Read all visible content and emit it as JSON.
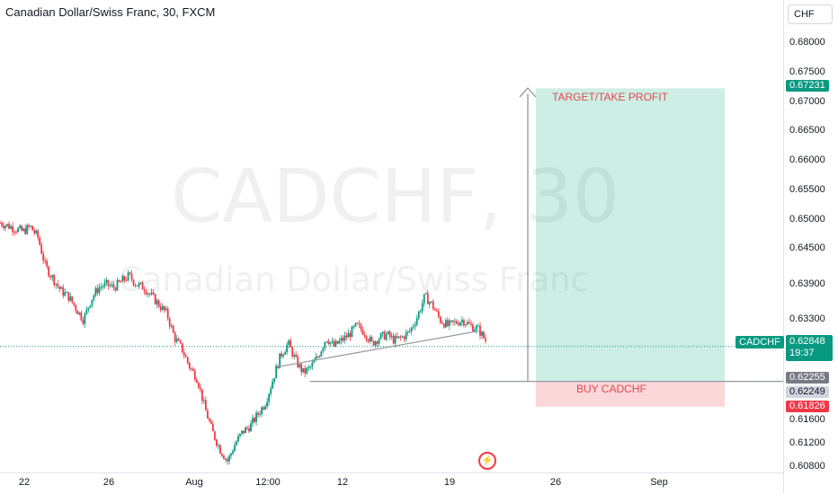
{
  "header": {
    "title": "Canadian Dollar/Swiss Franc, 30, FXCM"
  },
  "watermark": {
    "symbol": "CADCHF, 30",
    "name": "Canadian Dollar/Swiss Franc"
  },
  "axis": {
    "currency": "CHF",
    "y_ticks": [
      "0.68000",
      "0.67500",
      "0.67000",
      "0.66500",
      "0.66000",
      "0.65500",
      "0.65000",
      "0.64500",
      "0.63900",
      "0.63300",
      "0.61600",
      "0.61200",
      "0.60800"
    ],
    "y_tick_values": [
      0.68,
      0.675,
      0.67,
      0.665,
      0.66,
      0.655,
      0.65,
      0.645,
      0.639,
      0.633,
      0.616,
      0.612,
      0.608
    ],
    "x_ticks": [
      "22",
      "26",
      "Aug",
      "12:00",
      "12",
      "19",
      "26",
      "Sep"
    ]
  },
  "price_labels": {
    "target": "0.67231",
    "current": "0.62848",
    "countdown": "19:37",
    "entry": "0.62255",
    "entry2": "0.62249",
    "stop": "0.61826",
    "symbol": "CADCHF"
  },
  "annotations": {
    "target_label": "TARGET/TAKE PROFIT",
    "buy_label": "BUY CADCHF"
  },
  "colors": {
    "up": "#089981",
    "down": "#f23645",
    "profit_zone": "#cdeee4",
    "loss_zone": "#fbd7da",
    "current_line": "#089981"
  },
  "chart_data": {
    "type": "candlestick",
    "series_path": [
      0.6495,
      0.649,
      0.6485,
      0.648,
      0.6488,
      0.647,
      0.642,
      0.64,
      0.638,
      0.637,
      0.635,
      0.633,
      0.6365,
      0.6385,
      0.639,
      0.6385,
      0.6395,
      0.6405,
      0.639,
      0.6385,
      0.637,
      0.6355,
      0.634,
      0.63,
      0.628,
      0.625,
      0.623,
      0.618,
      0.614,
      0.611,
      0.609,
      0.612,
      0.614,
      0.615,
      0.617,
      0.619,
      0.623,
      0.627,
      0.629,
      0.626,
      0.624,
      0.625,
      0.627,
      0.63,
      0.6285,
      0.6295,
      0.6305,
      0.632,
      0.631,
      0.629,
      0.63,
      0.6305,
      0.6295,
      0.63,
      0.631,
      0.6335,
      0.637,
      0.6355,
      0.633,
      0.632,
      0.6325,
      0.633,
      0.632,
      0.6315,
      0.6295
    ],
    "x_start": "Jul 20",
    "x_end": "Aug 21",
    "trendline": {
      "from": 0.625,
      "to": 0.6312
    },
    "position": {
      "entry": 0.62255,
      "target": 0.67231,
      "stop": 0.61826,
      "current": 0.62848
    },
    "ylim": [
      0.606,
      0.683
    ]
  }
}
